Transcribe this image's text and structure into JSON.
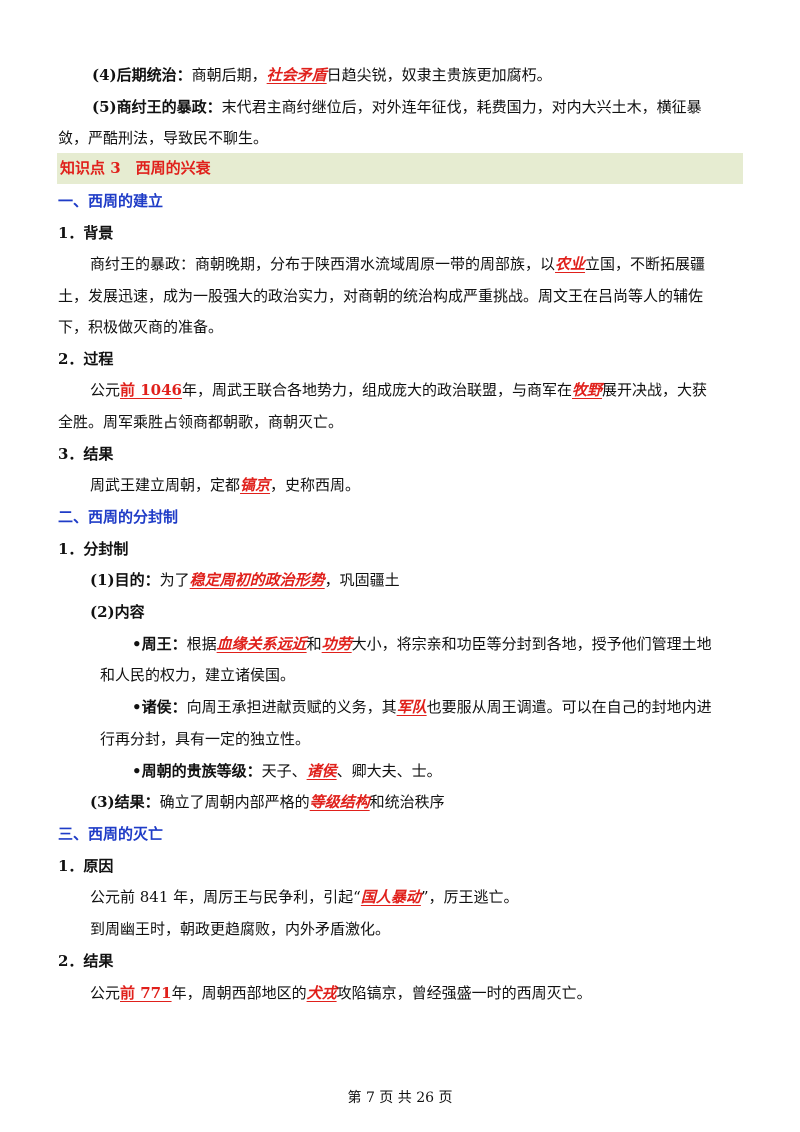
{
  "p4": {
    "label": "(4)后期统治：",
    "t1": "商朝后期，",
    "k1": "社会矛盾",
    "t2": "日趋尖锐，奴隶主贵族更加腐朽。"
  },
  "p5": {
    "label": "(5)商纣王的暴政：",
    "t1": "末代君主商纣继位后，对外连年征伐，耗费国力，对内大兴土木，横征暴",
    "t2": "敛，严酷刑法，导致民不聊生。"
  },
  "banner": {
    "title": "知识点 3　西周的兴衰"
  },
  "s1": {
    "heading": "一、西周的建立",
    "bg": {
      "heading": "1．背景",
      "l1a": "商纣王的暴政：商朝晚期，分布于陕西渭水流域周原一带的周部族，以",
      "l1k": "农业",
      "l1b": "立国，不断拓展疆",
      "l2": "土，发展迅速，成为一股强大的政治实力，对商朝的统治构成严重挑战。周文王在吕尚等人的辅佐",
      "l3": "下，积极做灭商的准备。"
    },
    "proc": {
      "heading": "2．过程",
      "l1a": "公元",
      "l1k1": "前 1046",
      "l1b": "年，周武王联合各地势力，组成庞大的政治联盟，与商军在",
      "l1k2": "牧野",
      "l1c": "展开决战，大获",
      "l2": "全胜。周军乘胜占领商都朝歌，商朝灭亡。"
    },
    "res": {
      "heading": "3．结果",
      "l1a": "周武王建立周朝，定都",
      "l1k": "镐京",
      "l1b": "，史称西周。"
    }
  },
  "s2": {
    "heading": "二、西周的分封制",
    "sub": "1．分封制",
    "purpose": {
      "label": "(1)目的：",
      "t1": "为了",
      "k1": "稳定周初的政治形势",
      "t2": "，巩固疆土"
    },
    "content": {
      "label": "(2)内容"
    },
    "king": {
      "label": "•周王：",
      "t1": "根据",
      "k1": "血缘关系远近",
      "t2": "和",
      "k2": "功劳",
      "t3": "大小，将宗亲和功臣等分封到各地，授予他们管理土地",
      "l2": "和人民的权力，建立诸侯国。"
    },
    "lords": {
      "label": "•诸侯：",
      "t1": "向周王承担进献贡赋的义务，其",
      "k1": "军队",
      "t2": "也要服从周王调遣。可以在自己的封地内进",
      "l2": "行再分封，具有一定的独立性。"
    },
    "ranks": {
      "label": "•周朝的贵族等级：",
      "t1": "天子、",
      "k1": "诸侯",
      "t2": "、卿大夫、士。"
    },
    "result": {
      "label": "(3)结果：",
      "t1": "确立了周朝内部严格的",
      "k1": "等级结构",
      "t2": "和统治秩序"
    }
  },
  "s3": {
    "heading": "三、西周的灭亡",
    "cause": {
      "heading": "1．原因",
      "l1a": "公元前 841 年，周厉王与民争利，引起“",
      "l1k": "国人暴动",
      "l1b": "”，厉王逃亡。",
      "l2": "到周幽王时，朝政更趋腐败，内外矛盾激化。"
    },
    "res": {
      "heading": "2．结果",
      "l1a": "公元",
      "l1k1": "前 771",
      "l1b": "年，周朝西部地区的",
      "l1k2": "犬戎",
      "l1c": "攻陷镐京，曾经强盛一时的西周灭亡。"
    }
  },
  "footer": {
    "page": "第 7 页 共 26 页"
  }
}
